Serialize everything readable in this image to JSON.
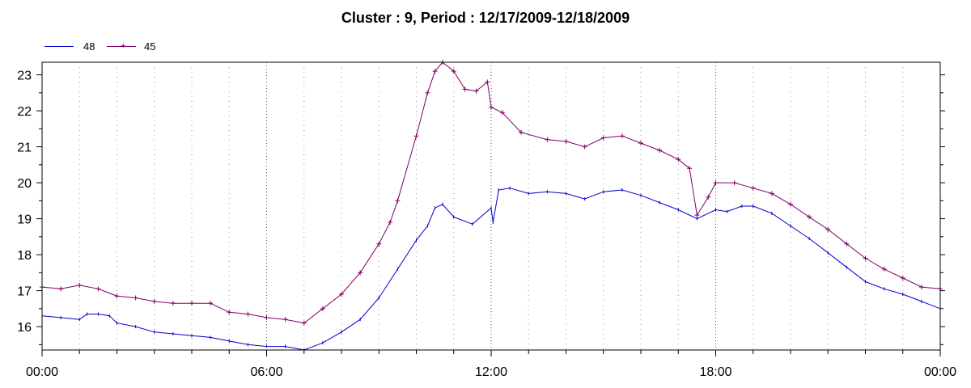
{
  "chart_data": {
    "type": "line",
    "title": "Cluster : 9, Period : 12/17/2009-12/18/2009",
    "xlabel": "",
    "ylabel": "",
    "x_tick_labels": [
      "00:00",
      "06:00",
      "12:00",
      "18:00",
      "00:00"
    ],
    "x_range_hours": [
      0,
      24
    ],
    "y_ticks": [
      16,
      17,
      18,
      19,
      20,
      21,
      22,
      23
    ],
    "ylim": [
      15.35,
      23.35
    ],
    "grid": "dotted vertical lines every 1 hour, stronger at 06:00/12:00/18:00",
    "legend_position": "top-left",
    "series": [
      {
        "name": "48",
        "color": "#0000cc",
        "marker": "tick",
        "points": [
          [
            0.0,
            16.3
          ],
          [
            0.5,
            16.25
          ],
          [
            1.0,
            16.2
          ],
          [
            1.2,
            16.35
          ],
          [
            1.5,
            16.35
          ],
          [
            1.8,
            16.3
          ],
          [
            2.0,
            16.1
          ],
          [
            2.5,
            16.0
          ],
          [
            3.0,
            15.85
          ],
          [
            3.5,
            15.8
          ],
          [
            4.0,
            15.75
          ],
          [
            4.5,
            15.7
          ],
          [
            5.0,
            15.6
          ],
          [
            5.5,
            15.5
          ],
          [
            6.0,
            15.45
          ],
          [
            6.5,
            15.45
          ],
          [
            7.0,
            15.35
          ],
          [
            7.5,
            15.55
          ],
          [
            8.0,
            15.85
          ],
          [
            8.5,
            16.2
          ],
          [
            9.0,
            16.8
          ],
          [
            9.5,
            17.6
          ],
          [
            10.0,
            18.4
          ],
          [
            10.3,
            18.8
          ],
          [
            10.5,
            19.3
          ],
          [
            10.7,
            19.4
          ],
          [
            11.0,
            19.05
          ],
          [
            11.5,
            18.85
          ],
          [
            12.0,
            19.3
          ],
          [
            12.05,
            18.9
          ],
          [
            12.2,
            19.8
          ],
          [
            12.5,
            19.85
          ],
          [
            13.0,
            19.7
          ],
          [
            13.5,
            19.75
          ],
          [
            14.0,
            19.7
          ],
          [
            14.5,
            19.55
          ],
          [
            15.0,
            19.75
          ],
          [
            15.5,
            19.8
          ],
          [
            16.0,
            19.65
          ],
          [
            16.5,
            19.45
          ],
          [
            17.0,
            19.25
          ],
          [
            17.5,
            19.0
          ],
          [
            18.0,
            19.25
          ],
          [
            18.3,
            19.2
          ],
          [
            18.7,
            19.35
          ],
          [
            19.0,
            19.35
          ],
          [
            19.5,
            19.15
          ],
          [
            20.0,
            18.8
          ],
          [
            20.5,
            18.45
          ],
          [
            21.0,
            18.05
          ],
          [
            21.5,
            17.65
          ],
          [
            22.0,
            17.25
          ],
          [
            22.5,
            17.05
          ],
          [
            23.0,
            16.9
          ],
          [
            23.5,
            16.7
          ],
          [
            24.0,
            16.5
          ]
        ]
      },
      {
        "name": "45",
        "color": "#800066",
        "marker": "plus",
        "points": [
          [
            0.0,
            17.1
          ],
          [
            0.5,
            17.05
          ],
          [
            1.0,
            17.15
          ],
          [
            1.5,
            17.05
          ],
          [
            2.0,
            16.85
          ],
          [
            2.5,
            16.8
          ],
          [
            3.0,
            16.7
          ],
          [
            3.5,
            16.65
          ],
          [
            4.0,
            16.65
          ],
          [
            4.5,
            16.65
          ],
          [
            5.0,
            16.4
          ],
          [
            5.5,
            16.35
          ],
          [
            6.0,
            16.25
          ],
          [
            6.5,
            16.2
          ],
          [
            7.0,
            16.1
          ],
          [
            7.5,
            16.5
          ],
          [
            8.0,
            16.9
          ],
          [
            8.5,
            17.5
          ],
          [
            9.0,
            18.3
          ],
          [
            9.3,
            18.9
          ],
          [
            9.5,
            19.5
          ],
          [
            10.0,
            21.3
          ],
          [
            10.3,
            22.5
          ],
          [
            10.5,
            23.1
          ],
          [
            10.7,
            23.35
          ],
          [
            11.0,
            23.1
          ],
          [
            11.3,
            22.6
          ],
          [
            11.6,
            22.55
          ],
          [
            11.9,
            22.8
          ],
          [
            12.0,
            22.1
          ],
          [
            12.3,
            21.95
          ],
          [
            12.8,
            21.4
          ],
          [
            13.5,
            21.2
          ],
          [
            14.0,
            21.15
          ],
          [
            14.5,
            21.0
          ],
          [
            15.0,
            21.25
          ],
          [
            15.5,
            21.3
          ],
          [
            16.0,
            21.1
          ],
          [
            16.5,
            20.9
          ],
          [
            17.0,
            20.65
          ],
          [
            17.3,
            20.4
          ],
          [
            17.5,
            19.1
          ],
          [
            17.8,
            19.6
          ],
          [
            18.0,
            20.0
          ],
          [
            18.5,
            20.0
          ],
          [
            19.0,
            19.85
          ],
          [
            19.5,
            19.7
          ],
          [
            20.0,
            19.4
          ],
          [
            20.5,
            19.05
          ],
          [
            21.0,
            18.7
          ],
          [
            21.5,
            18.3
          ],
          [
            22.0,
            17.9
          ],
          [
            22.5,
            17.6
          ],
          [
            23.0,
            17.35
          ],
          [
            23.5,
            17.1
          ],
          [
            24.0,
            17.05
          ]
        ]
      }
    ]
  }
}
